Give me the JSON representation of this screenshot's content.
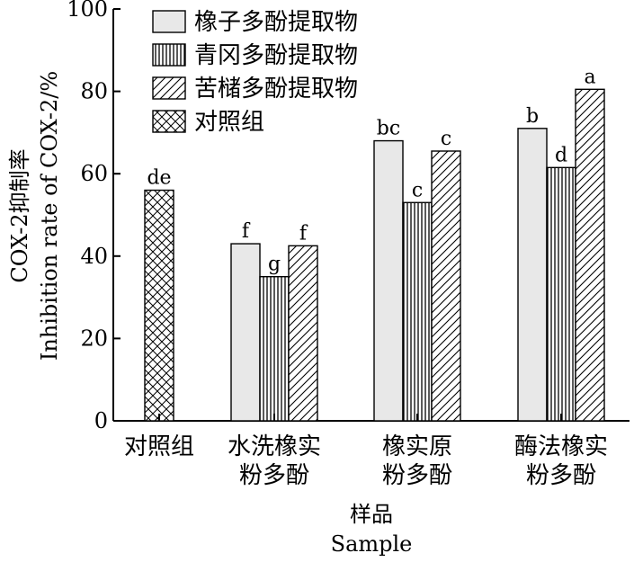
{
  "chart_data": {
    "type": "bar",
    "ylim": [
      0,
      100
    ],
    "yticks": [
      0,
      20,
      40,
      60,
      80,
      100
    ],
    "ylabel_cn": "COX-2抑制率",
    "ylabel_en": "Inhibition rate of COX-2/%",
    "xlabel_cn": "样品",
    "xlabel_en": "Sample",
    "legend_position": "top-left",
    "series": [
      {
        "name": "橡子多酚提取物",
        "pattern": "solid-gray"
      },
      {
        "name": "青冈多酚提取物",
        "pattern": "vertical-lines"
      },
      {
        "name": "苦槠多酚提取物",
        "pattern": "diagonal-lines"
      },
      {
        "name": "对照组",
        "pattern": "crosshatch"
      }
    ],
    "groups": [
      {
        "label_lines": [
          "对照组"
        ],
        "bars": [
          {
            "series": 3,
            "value": 56,
            "sig": "de"
          }
        ]
      },
      {
        "label_lines": [
          "水洗橡实",
          "粉多酚"
        ],
        "bars": [
          {
            "series": 0,
            "value": 43,
            "sig": "f"
          },
          {
            "series": 1,
            "value": 35,
            "sig": "g"
          },
          {
            "series": 2,
            "value": 42.5,
            "sig": "f"
          }
        ]
      },
      {
        "label_lines": [
          "橡实原",
          "粉多酚"
        ],
        "bars": [
          {
            "series": 0,
            "value": 68,
            "sig": "bc"
          },
          {
            "series": 1,
            "value": 53,
            "sig": "c"
          },
          {
            "series": 2,
            "value": 65.5,
            "sig": "c"
          }
        ]
      },
      {
        "label_lines": [
          "酶法橡实",
          "粉多酚"
        ],
        "bars": [
          {
            "series": 0,
            "value": 71,
            "sig": "b"
          },
          {
            "series": 1,
            "value": 61.5,
            "sig": "d"
          },
          {
            "series": 2,
            "value": 80.5,
            "sig": "a"
          }
        ]
      }
    ]
  }
}
